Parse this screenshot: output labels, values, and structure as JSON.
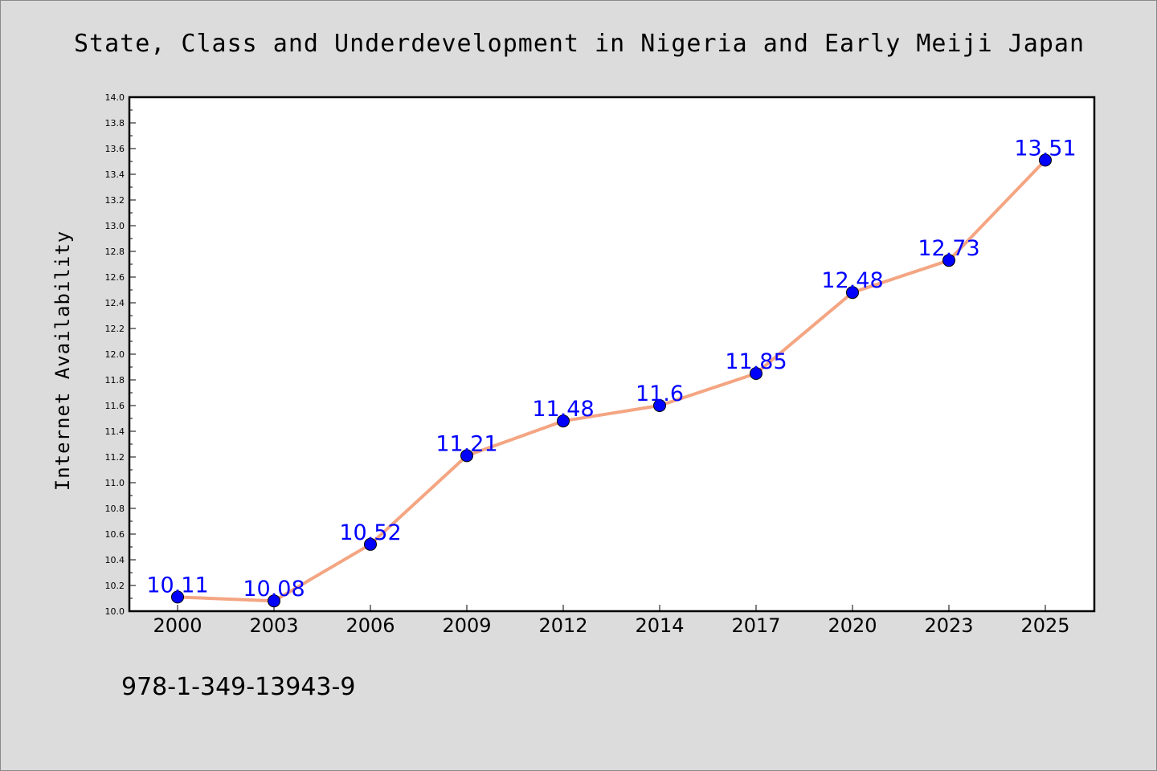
{
  "footnote": "978-1-349-13943-9",
  "chart_data": {
    "type": "line",
    "title": "State, Class and Underdevelopment in Nigeria and Early Meiji Japan",
    "xlabel": "",
    "ylabel": "Internet Availability",
    "categories": [
      "2000",
      "2003",
      "2006",
      "2009",
      "2012",
      "2014",
      "2017",
      "2020",
      "2023",
      "2025"
    ],
    "series": [
      {
        "values": [
          10.11,
          10.08,
          10.52,
          11.21,
          11.48,
          11.6,
          11.85,
          12.48,
          12.73,
          13.51
        ],
        "labels": [
          "10.11",
          "10.08",
          "10.52",
          "11.21",
          "11.48",
          "11.6",
          "11.85",
          "12.48",
          "12.73",
          "13.51"
        ]
      }
    ],
    "ylim": [
      10.0,
      14.0
    ],
    "yticks": [
      "10.0",
      "10.2",
      "10.4",
      "10.6",
      "10.8",
      "11.0",
      "11.2",
      "11.4",
      "11.6",
      "11.8",
      "12.0",
      "12.2",
      "12.4",
      "12.6",
      "12.8",
      "13.0",
      "13.2",
      "13.4",
      "13.6",
      "13.8",
      "14.0"
    ],
    "grid": false,
    "legend": "none",
    "colors": {
      "line": "#f4a582",
      "marker": "#0000ff",
      "data_label": "#0000ff",
      "plot_background": "#ffffff",
      "figure_background": "#dcdcdc"
    }
  }
}
